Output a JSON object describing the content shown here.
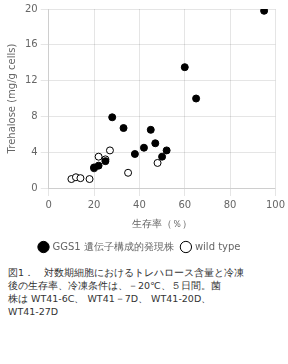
{
  "chart_data": {
    "type": "scatter",
    "xlabel": "生存率（％）",
    "ylabel": "Trehalose (mg/g cells)",
    "annotations": [
      "図1．　対数期細胞におけるトレハロース含量と冷凍",
      "後の生存率、冷凍条件は、－20℃、５日間。菌",
      "株は WT41-6C、 WT41－7D、 WT41-20D、",
      "WT41-27D"
    ],
    "series": [
      {
        "name": "wild type",
        "color": "#000000",
        "marker": "open_circle",
        "x": [
          10,
          12,
          14,
          18,
          20,
          22,
          25,
          27,
          35,
          48
        ],
        "values": [
          1.0,
          1.2,
          1.1,
          1.0,
          2.2,
          3.5,
          3.2,
          4.2,
          1.7,
          2.8
        ]
      },
      {
        "name": "GGS1 遺伝子構成的発現株",
        "color": "#000000",
        "marker": "circle",
        "x": [
          20,
          22,
          25,
          28,
          33,
          38,
          42,
          45,
          47,
          50,
          52,
          60,
          65,
          95
        ],
        "values": [
          2.3,
          2.5,
          3.0,
          7.9,
          6.7,
          3.8,
          4.5,
          6.5,
          5.0,
          3.5,
          4.2,
          13.5,
          10.0,
          19.8
        ]
      }
    ],
    "xlim": [
      0,
      100
    ],
    "xticks": [
      0,
      20,
      40,
      60,
      80,
      100
    ],
    "ylim": [
      0,
      20
    ],
    "yticks": [
      0,
      4,
      8,
      12,
      16,
      20
    ],
    "grid": true,
    "legend": "bottom"
  }
}
